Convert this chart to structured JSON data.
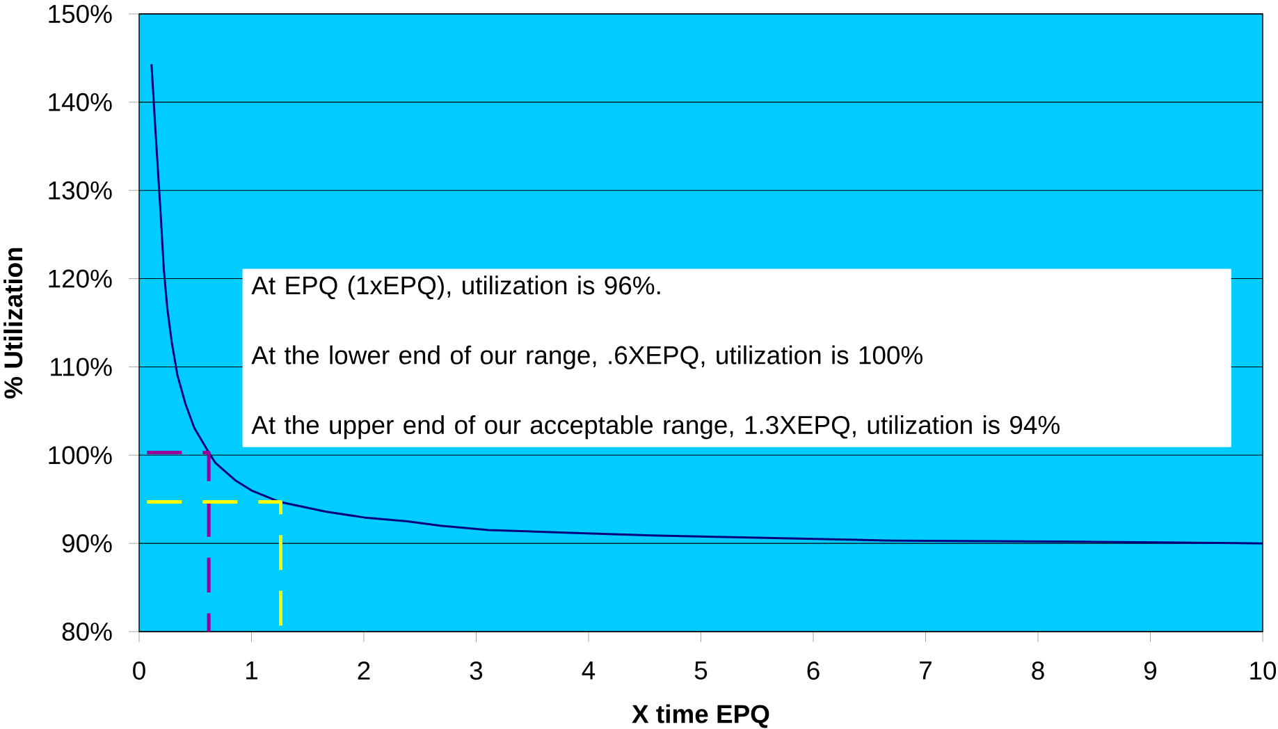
{
  "chart_data": {
    "type": "line",
    "xlabel": "X time EPQ",
    "ylabel": "% Utilization",
    "xlim": [
      0,
      10
    ],
    "xticks": [
      0,
      1,
      2,
      3,
      4,
      5,
      6,
      7,
      8,
      9,
      10
    ],
    "ylim": [
      80,
      150
    ],
    "yticks": [
      {
        "value": 80,
        "label": "80%"
      },
      {
        "value": 90,
        "label": "90%"
      },
      {
        "value": 100,
        "label": "100%"
      },
      {
        "value": 110,
        "label": "110%"
      },
      {
        "value": 120,
        "label": "120%"
      },
      {
        "value": 130,
        "label": "130%"
      },
      {
        "value": 140,
        "label": "140%"
      },
      {
        "value": 150,
        "label": "150%"
      }
    ],
    "grid": "y",
    "marker": "none",
    "series": [
      {
        "color": "#000080",
        "line_style": "solid",
        "x": [
          0.11,
          0.145,
          0.19,
          0.22,
          0.25,
          0.29,
          0.34,
          0.41,
          0.49,
          0.62,
          0.68,
          0.86,
          1.0,
          1.25,
          1.66,
          2.02,
          2.39,
          2.68,
          3.11,
          3.84,
          4.56,
          5.29,
          6.38,
          6.74,
          8.19,
          10
        ],
        "values": [
          144.3,
          136.8,
          127.6,
          121,
          116.7,
          112.8,
          109.1,
          105.9,
          103.1,
          100.3,
          99.1,
          97.1,
          96.0,
          94.7,
          93.6,
          92.9,
          92.5,
          92.0,
          91.5,
          91.2,
          90.9,
          90.7,
          90.4,
          90.3,
          90.2,
          90.0
        ]
      },
      {
        "color": "#990099",
        "line_style": "dashed",
        "x": [
          0.07,
          0.62,
          0.62
        ],
        "values": [
          100.3,
          100.3,
          80
        ]
      },
      {
        "color": "#ffff00",
        "line_style": "dashed",
        "x": [
          0.07,
          1.26,
          1.26
        ],
        "values": [
          94.7,
          94.7,
          80
        ]
      }
    ],
    "annotations": [
      "At EPQ (1xEPQ), utilization is 96%.",
      "At the lower end of our range, .6XEPQ, utilization is 100%",
      "At the upper end of our acceptable range, 1.3XEPQ, utilization is 94%"
    ]
  }
}
